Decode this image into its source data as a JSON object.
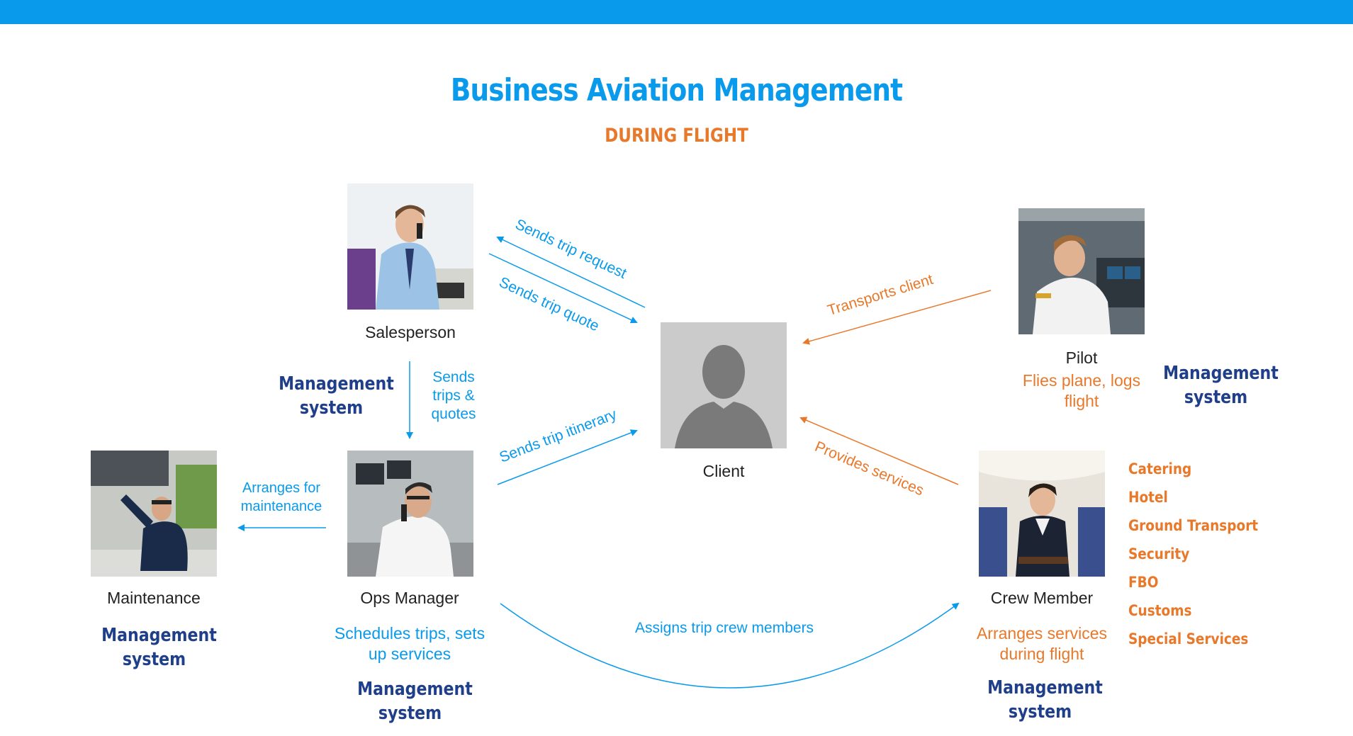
{
  "title": "Business Aviation Management",
  "subtitle": "DURING FLIGHT",
  "actors": {
    "salesperson": {
      "name": "Salesperson"
    },
    "client": {
      "name": "Client"
    },
    "pilot": {
      "name": "Pilot",
      "desc": "Flies plane, logs flight",
      "system": "Management system"
    },
    "maintenance": {
      "name": "Maintenance",
      "system": "Management system"
    },
    "ops_manager": {
      "name": "Ops Manager",
      "desc": "Schedules trips, sets up services",
      "system": "Management system"
    },
    "crew_member": {
      "name": "Crew Member",
      "desc": "Arranges services during flight",
      "system": "Management system"
    }
  },
  "salesperson_system": "Management system",
  "flows": {
    "sends_trip_request": "Sends trip request",
    "sends_trip_quote": "Sends trip quote",
    "sends_trips_quotes": "Sends trips & quotes",
    "sends_trip_itinerary": "Sends trip itinerary",
    "arranges_maintenance": "Arranges for maintenance",
    "transports_client": "Transports client",
    "provides_services": "Provides services",
    "assigns_crew": "Assigns trip crew members"
  },
  "services": [
    "Catering",
    "Hotel",
    "Ground Transport",
    "Security",
    "FBO",
    "Customs",
    "Special Services"
  ],
  "colors": {
    "blue": "#0a9aeb",
    "orange": "#e8782a",
    "navy": "#1f3f8a",
    "header_bar": "#0a9aeb"
  }
}
